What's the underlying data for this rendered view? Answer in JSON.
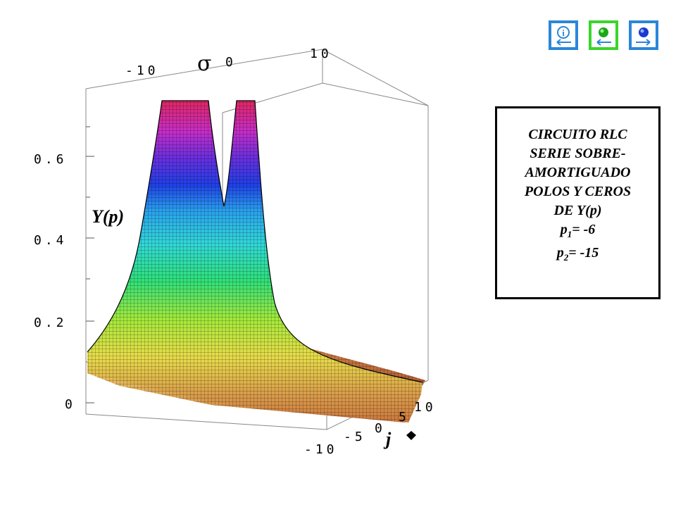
{
  "figure": {
    "surface_label": "Y(p)",
    "axis_sigma_symbol": "σ",
    "axis_j_symbol": "j",
    "z_ticks": [
      "0",
      "0.2",
      "0.4",
      "0.6"
    ],
    "x_ticks": [
      "-10",
      "0",
      "10"
    ],
    "y_ticks": [
      "-10",
      "-5",
      "0",
      "5",
      "10"
    ]
  },
  "info_box": {
    "line1": "CIRCUITO RLC",
    "line2": "SERIE SOBRE-",
    "line3": "AMORTIGUADO",
    "line4": "POLOS Y CEROS",
    "line5": "DE Y(p)",
    "p1_name": "p",
    "p1_sub": "1",
    "p1_value": "= -6",
    "p2_name": "p",
    "p2_sub": "2",
    "p2_value": "= -15"
  },
  "nav": {
    "info_icon": "info-icon",
    "prev_icon": "green-ball-back-icon",
    "next_icon": "blue-ball-forward-icon"
  }
}
